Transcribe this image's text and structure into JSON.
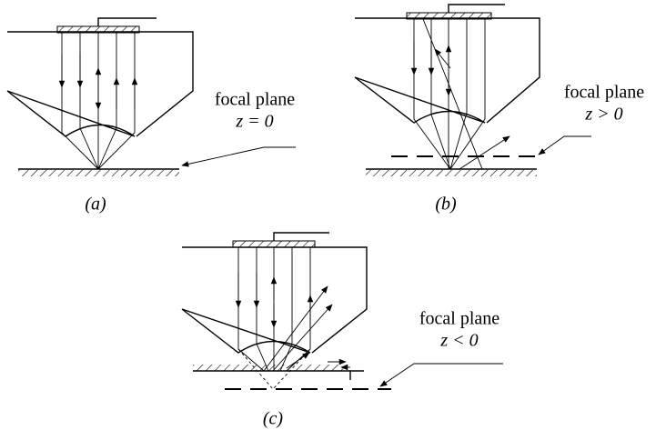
{
  "panels": [
    {
      "caption": "(a)",
      "focal": "focal plane",
      "condition": "z = 0"
    },
    {
      "caption": "(b)",
      "focal": "focal plane",
      "condition": "z > 0"
    },
    {
      "caption": "(c)",
      "focal": "focal plane",
      "condition": "z < 0"
    }
  ]
}
